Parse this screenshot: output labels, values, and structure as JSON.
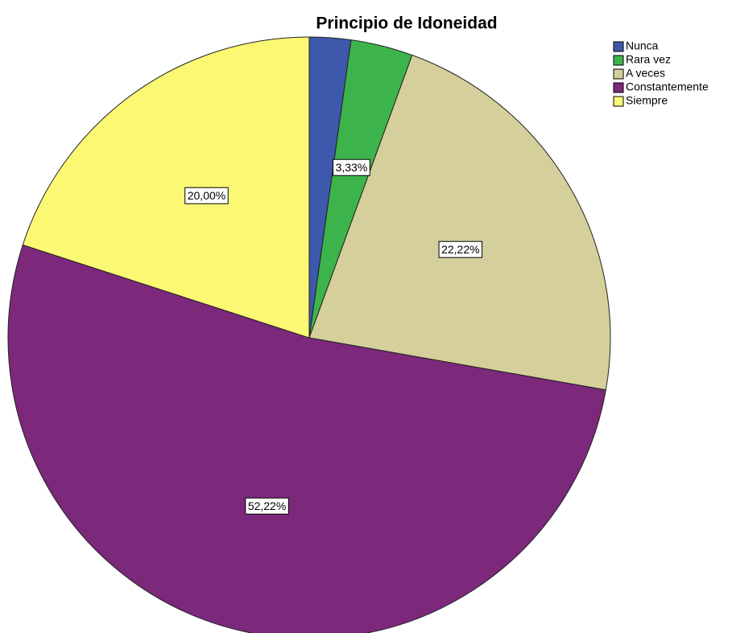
{
  "chart_data": {
    "type": "pie",
    "title": "Principio de Idoneidad",
    "categories": [
      "Nunca",
      "Rara vez",
      "A veces",
      "Constantemente",
      "Siempre"
    ],
    "values": [
      2.22,
      3.33,
      22.22,
      52.22,
      20.0
    ],
    "value_labels": [
      null,
      "3,33%",
      "22,22%",
      "52,22%",
      "20,00%"
    ],
    "colors": [
      "#3e58ac",
      "#3cb44b",
      "#d4cf9b",
      "#7c287b",
      "#fbf874"
    ],
    "legend": "top-right"
  }
}
